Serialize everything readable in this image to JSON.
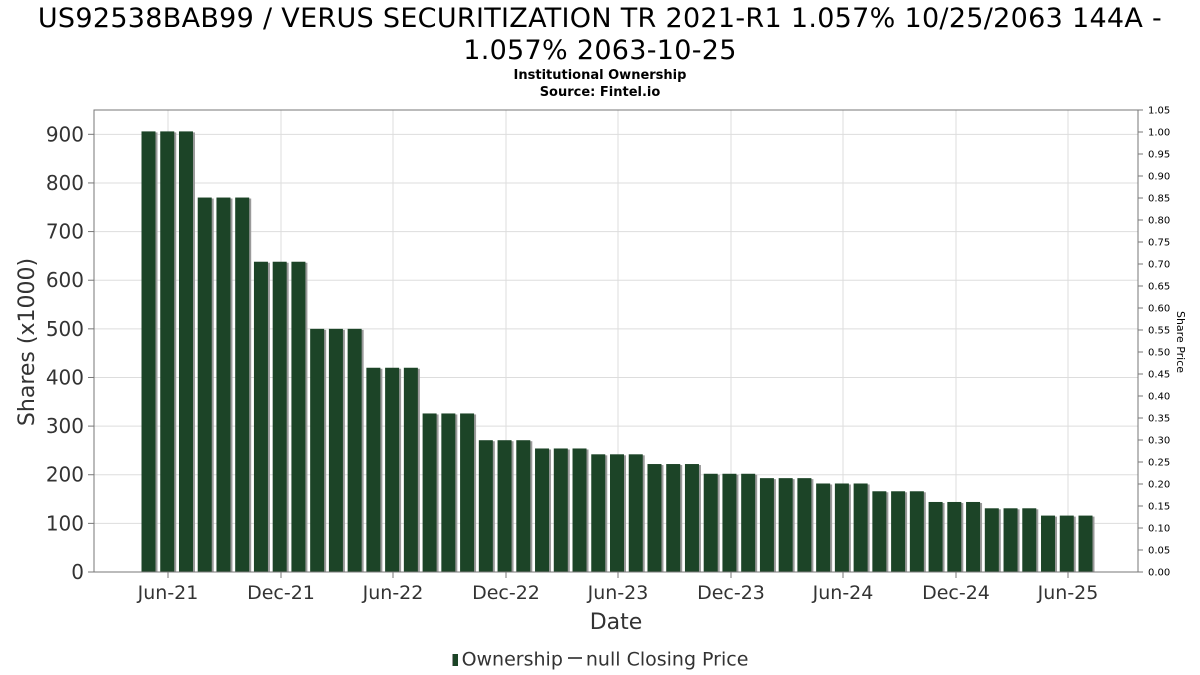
{
  "title": {
    "line1": "US92538BAB99 / VERUS SECURITIZATION TR 2021-R1 1.057% 10/25/2063 144A -",
    "line2": "1.057% 2063-10-25"
  },
  "subtitle": {
    "line1": "Institutional Ownership",
    "line2": "Source: Fintel.io"
  },
  "legend": {
    "ownership": "Ownership",
    "price": "null Closing Price"
  },
  "colors": {
    "bar": "#1c4427",
    "bar_shadow": "#9a9a9a",
    "grid": "#dddddd",
    "axis": "#777777"
  },
  "chart_data": {
    "type": "bar",
    "xlabel": "Date",
    "ylabel": "Shares (x1000)",
    "y2label": "Share Price",
    "ylim": [
      0,
      950
    ],
    "y2lim": [
      0,
      1.05
    ],
    "yticks": [
      0,
      100,
      200,
      300,
      400,
      500,
      600,
      700,
      800,
      900
    ],
    "y2ticks": [
      "0.00",
      "0.05",
      "0.10",
      "0.15",
      "0.20",
      "0.25",
      "0.30",
      "0.35",
      "0.40",
      "0.45",
      "0.50",
      "0.55",
      "0.60",
      "0.65",
      "0.70",
      "0.75",
      "0.80",
      "0.85",
      "0.90",
      "0.95",
      "1.00",
      "1.05"
    ],
    "xticks": [
      "Jun-21",
      "Dec-21",
      "Jun-22",
      "Dec-22",
      "Jun-23",
      "Dec-23",
      "Jun-24",
      "Dec-24",
      "Jun-25"
    ],
    "grid": true,
    "legend_position": "bottom",
    "series": [
      {
        "name": "Ownership",
        "values": [
          906,
          906,
          906,
          770,
          770,
          770,
          638,
          638,
          638,
          500,
          500,
          500,
          420,
          420,
          420,
          326,
          326,
          326,
          271,
          271,
          271,
          254,
          254,
          254,
          242,
          242,
          242,
          222,
          222,
          222,
          202,
          202,
          202,
          193,
          193,
          193,
          182,
          182,
          182,
          166,
          166,
          166,
          144,
          144,
          144,
          131,
          131,
          131,
          116,
          116,
          116
        ]
      },
      {
        "name": "null Closing Price",
        "values": []
      }
    ]
  }
}
